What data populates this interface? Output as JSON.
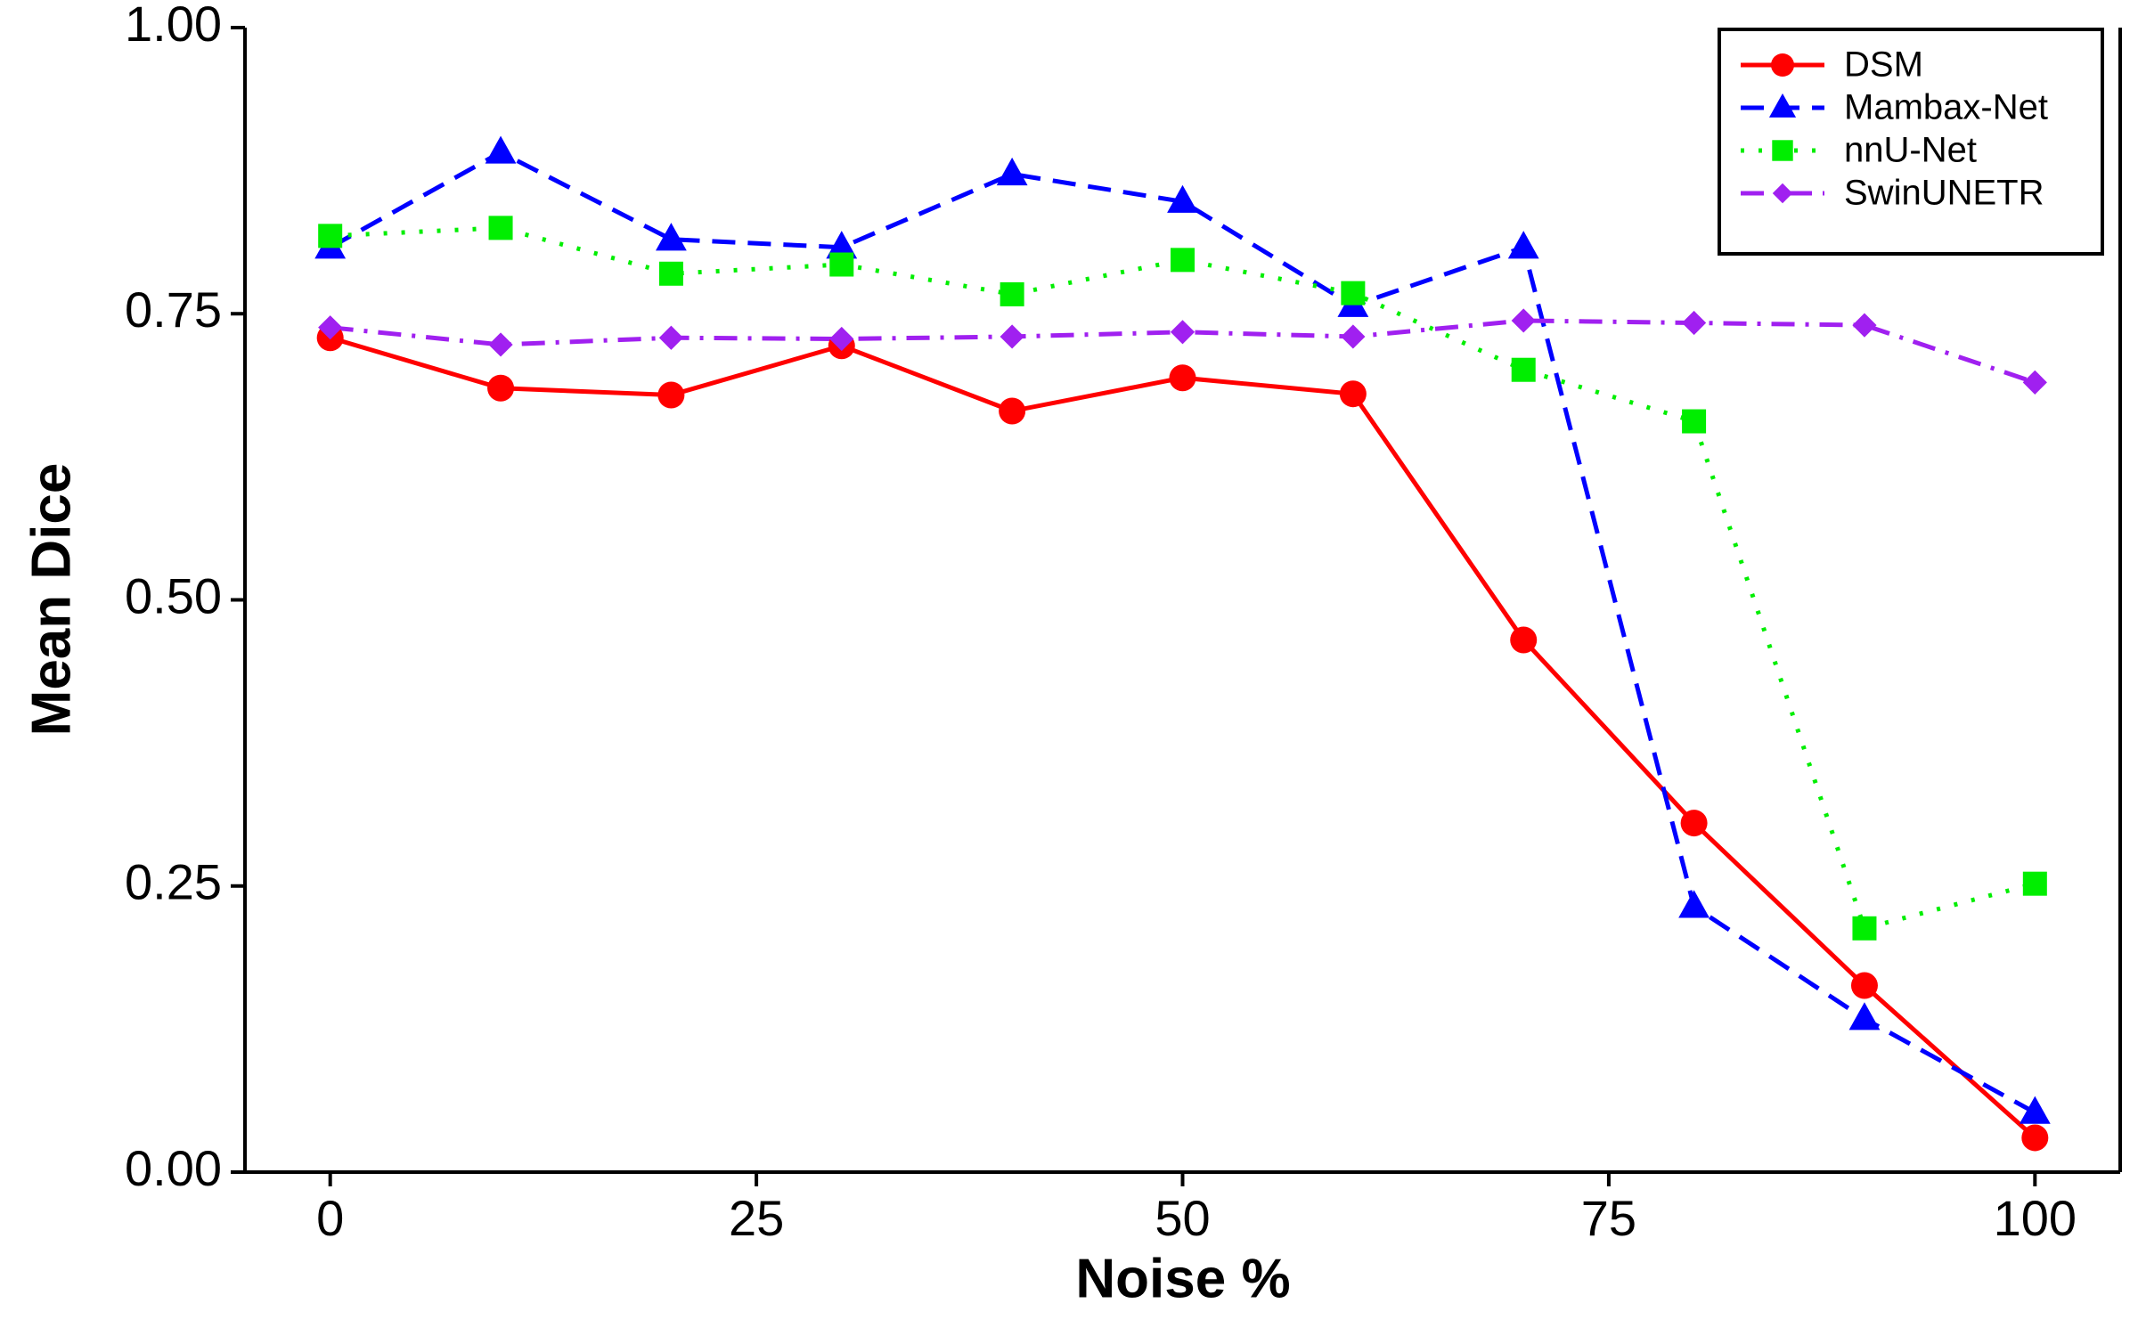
{
  "chart_data": {
    "type": "line",
    "x_label": "Noise %",
    "y_label": "Mean Dice",
    "xlim": [
      -5,
      105
    ],
    "ylim": [
      0,
      1
    ],
    "xticks": [
      0,
      25,
      50,
      75,
      100
    ],
    "yticks": [
      {
        "value": 0,
        "label": "0.00"
      },
      {
        "value": 0.25,
        "label": "0.25"
      },
      {
        "value": 0.5,
        "label": "0.50"
      },
      {
        "value": 0.75,
        "label": "0.75"
      },
      {
        "value": 1,
        "label": "1.00"
      }
    ],
    "x": [
      0,
      10,
      20,
      30,
      40,
      50,
      60,
      70,
      80,
      90,
      100
    ],
    "legend_position": "upper right",
    "series": [
      {
        "name": "DSM",
        "color": "#ff0000",
        "marker": "circle",
        "line_style": "solid",
        "values": [
          0.729,
          0.685,
          0.679,
          0.722,
          0.665,
          0.694,
          0.68,
          0.465,
          0.305,
          0.163,
          0.03
        ]
      },
      {
        "name": "Mambax-Net",
        "color": "#0000ff",
        "marker": "triangle",
        "line_style": "dashed",
        "values": [
          0.808,
          0.891,
          0.815,
          0.808,
          0.872,
          0.848,
          0.757,
          0.808,
          0.232,
          0.134,
          0.052
        ]
      },
      {
        "name": "nnU-Net",
        "color": "#00ee00",
        "marker": "square",
        "line_style": "dotted",
        "values": [
          0.818,
          0.825,
          0.785,
          0.793,
          0.767,
          0.797,
          0.768,
          0.701,
          0.656,
          0.213,
          0.252
        ]
      },
      {
        "name": "SwinUNETR",
        "color": "#a020f0",
        "marker": "diamond",
        "line_style": "dashdot",
        "values": [
          0.738,
          0.723,
          0.729,
          0.728,
          0.73,
          0.734,
          0.73,
          0.744,
          0.742,
          0.74,
          0.69
        ]
      }
    ]
  }
}
